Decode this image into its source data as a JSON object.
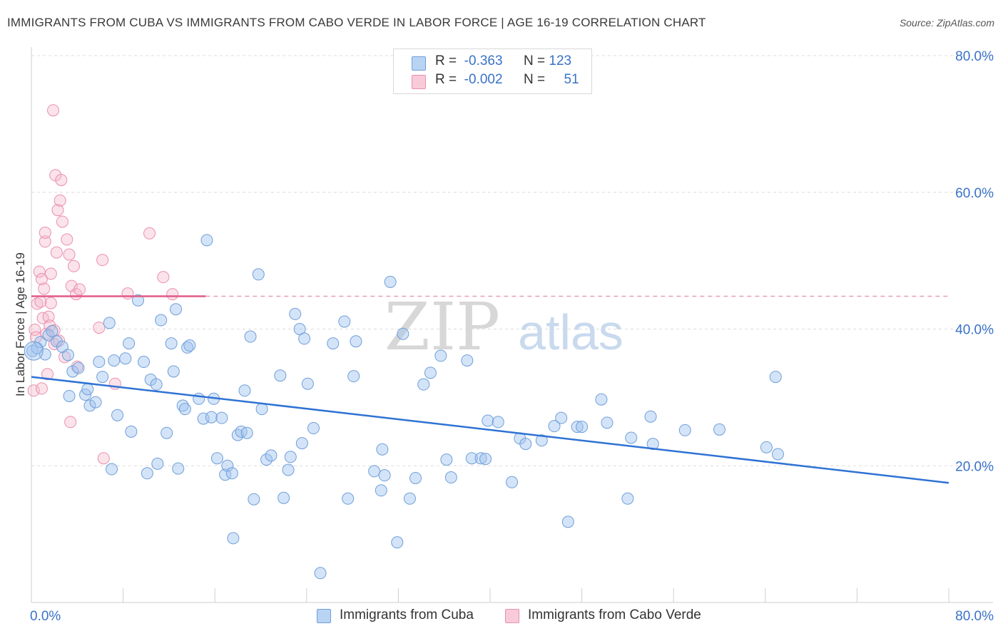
{
  "title": "IMMIGRANTS FROM CUBA VS IMMIGRANTS FROM CABO VERDE IN LABOR FORCE | AGE 16-19 CORRELATION CHART",
  "source": "Source: ZipAtlas.com",
  "watermark": {
    "zip": "ZIP",
    "atlas": "atlas"
  },
  "legend": {
    "rows": [
      {
        "r_label": "R =",
        "r_value": "-0.363",
        "n_label": "N =",
        "n_value": "123",
        "color": "#a9c8f0"
      },
      {
        "r_label": "R =",
        "r_value": "-0.002",
        "n_label": "N =",
        "n_value": "51",
        "color": "#f6b8cb"
      }
    ]
  },
  "chart_data": {
    "type": "scatter",
    "xlabel": "",
    "ylabel": "In Labor Force | Age 16-19",
    "xlim": [
      0,
      80
    ],
    "ylim": [
      0,
      80
    ],
    "x_tick_labels": [
      "0.0%",
      "80.0%"
    ],
    "y_tick_labels": [
      "20.0%",
      "40.0%",
      "60.0%",
      "80.0%"
    ],
    "y_ticks": [
      20,
      40,
      60,
      80
    ],
    "series": [
      {
        "name": "Immigrants from Cuba",
        "color": "#6f9fd8",
        "fill": "rgba(160,195,240,0.45)",
        "line_color": "#2f72d4",
        "trend": {
          "x": [
            0,
            80
          ],
          "y": [
            33.0,
            17.5
          ],
          "dashed_from": null
        },
        "points": [
          [
            0.1,
            36.8
          ],
          [
            0.5,
            37.2
          ],
          [
            0.8,
            38.1
          ],
          [
            1.2,
            36.3
          ],
          [
            1.5,
            39.1
          ],
          [
            1.8,
            39.7
          ],
          [
            2.2,
            38.2
          ],
          [
            2.7,
            37.4
          ],
          [
            3.2,
            36.2
          ],
          [
            3.6,
            33.8
          ],
          [
            4.1,
            34.3
          ],
          [
            3.3,
            30.2
          ],
          [
            4.7,
            30.4
          ],
          [
            4.9,
            31.2
          ],
          [
            5.9,
            35.2
          ],
          [
            5.1,
            28.8
          ],
          [
            5.6,
            29.3
          ],
          [
            6.2,
            33.0
          ],
          [
            6.8,
            40.9
          ],
          [
            7.2,
            35.4
          ],
          [
            7.5,
            27.4
          ],
          [
            7.0,
            19.5
          ],
          [
            8.2,
            35.7
          ],
          [
            8.5,
            37.9
          ],
          [
            8.7,
            25.0
          ],
          [
            9.3,
            44.2
          ],
          [
            9.8,
            35.2
          ],
          [
            10.1,
            18.9
          ],
          [
            10.4,
            32.6
          ],
          [
            10.9,
            31.9
          ],
          [
            11.0,
            20.3
          ],
          [
            11.3,
            41.3
          ],
          [
            11.8,
            24.8
          ],
          [
            12.2,
            37.9
          ],
          [
            12.4,
            33.8
          ],
          [
            12.6,
            42.9
          ],
          [
            12.8,
            19.6
          ],
          [
            13.2,
            28.8
          ],
          [
            13.4,
            28.3
          ],
          [
            13.6,
            37.3
          ],
          [
            13.8,
            37.6
          ],
          [
            14.6,
            29.8
          ],
          [
            15.0,
            26.9
          ],
          [
            15.3,
            53.0
          ],
          [
            15.7,
            27.1
          ],
          [
            15.9,
            29.8
          ],
          [
            16.2,
            21.1
          ],
          [
            16.6,
            27.0
          ],
          [
            16.9,
            18.7
          ],
          [
            17.1,
            20.0
          ],
          [
            17.5,
            18.9
          ],
          [
            17.6,
            9.4
          ],
          [
            18.0,
            24.5
          ],
          [
            18.3,
            25.0
          ],
          [
            18.6,
            31.0
          ],
          [
            18.8,
            24.8
          ],
          [
            19.1,
            38.9
          ],
          [
            19.4,
            15.1
          ],
          [
            19.8,
            48.0
          ],
          [
            20.1,
            28.3
          ],
          [
            20.5,
            20.9
          ],
          [
            20.9,
            21.5
          ],
          [
            21.7,
            33.2
          ],
          [
            22.0,
            15.3
          ],
          [
            22.4,
            19.4
          ],
          [
            22.6,
            21.3
          ],
          [
            23.0,
            42.2
          ],
          [
            23.4,
            40.0
          ],
          [
            23.6,
            23.3
          ],
          [
            23.8,
            38.6
          ],
          [
            24.1,
            32.0
          ],
          [
            24.6,
            25.5
          ],
          [
            25.2,
            4.3
          ],
          [
            26.3,
            37.9
          ],
          [
            27.3,
            41.1
          ],
          [
            27.6,
            15.2
          ],
          [
            28.1,
            33.1
          ],
          [
            28.3,
            38.2
          ],
          [
            29.9,
            19.2
          ],
          [
            30.6,
            22.4
          ],
          [
            30.8,
            18.6
          ],
          [
            30.5,
            16.4
          ],
          [
            31.3,
            46.9
          ],
          [
            31.9,
            8.8
          ],
          [
            32.4,
            39.3
          ],
          [
            33.0,
            15.2
          ],
          [
            33.5,
            18.2
          ],
          [
            34.2,
            31.9
          ],
          [
            34.8,
            33.6
          ],
          [
            35.7,
            36.1
          ],
          [
            36.2,
            20.9
          ],
          [
            36.6,
            18.3
          ],
          [
            38.0,
            35.4
          ],
          [
            38.4,
            21.1
          ],
          [
            39.2,
            21.1
          ],
          [
            39.6,
            21.0
          ],
          [
            39.8,
            26.6
          ],
          [
            40.7,
            26.4
          ],
          [
            41.9,
            17.6
          ],
          [
            42.6,
            24.0
          ],
          [
            43.1,
            23.2
          ],
          [
            44.5,
            23.7
          ],
          [
            45.6,
            25.8
          ],
          [
            46.2,
            27.0
          ],
          [
            46.8,
            11.8
          ],
          [
            47.6,
            25.7
          ],
          [
            48.0,
            25.7
          ],
          [
            49.7,
            29.7
          ],
          [
            50.2,
            26.3
          ],
          [
            52.0,
            15.2
          ],
          [
            52.3,
            24.1
          ],
          [
            54.0,
            27.2
          ],
          [
            54.2,
            23.2
          ],
          [
            57.0,
            25.2
          ],
          [
            60.0,
            25.3
          ],
          [
            64.1,
            22.7
          ],
          [
            64.9,
            33.0
          ],
          [
            65.1,
            21.7
          ]
        ],
        "big_point": [
          0.2,
          36.8
        ]
      },
      {
        "name": "Immigrants from Cabo Verde",
        "color": "#ea8fb0",
        "fill": "rgba(246,184,203,0.40)",
        "line_color": "#e05a87",
        "trend": {
          "x": [
            0,
            15.2,
            80
          ],
          "y": [
            44.8,
            44.8,
            44.8
          ],
          "dashed_from": 15.2
        },
        "points": [
          [
            0.2,
            31.0
          ],
          [
            0.3,
            39.9
          ],
          [
            0.4,
            38.8
          ],
          [
            0.5,
            43.7
          ],
          [
            0.7,
            48.4
          ],
          [
            0.9,
            47.3
          ],
          [
            0.8,
            44.0
          ],
          [
            0.9,
            31.3
          ],
          [
            1.0,
            41.6
          ],
          [
            1.1,
            45.9
          ],
          [
            1.2,
            52.8
          ],
          [
            1.2,
            54.1
          ],
          [
            1.3,
            39.3
          ],
          [
            1.4,
            33.4
          ],
          [
            1.5,
            41.8
          ],
          [
            1.6,
            40.5
          ],
          [
            1.7,
            43.8
          ],
          [
            1.7,
            48.1
          ],
          [
            1.9,
            72.0
          ],
          [
            2.0,
            39.8
          ],
          [
            2.0,
            37.8
          ],
          [
            2.1,
            62.5
          ],
          [
            2.2,
            51.2
          ],
          [
            2.3,
            57.4
          ],
          [
            2.4,
            38.3
          ],
          [
            2.5,
            58.8
          ],
          [
            2.6,
            61.8
          ],
          [
            2.7,
            55.7
          ],
          [
            2.9,
            35.9
          ],
          [
            3.1,
            53.1
          ],
          [
            3.3,
            50.9
          ],
          [
            3.4,
            26.4
          ],
          [
            3.5,
            46.3
          ],
          [
            3.7,
            49.2
          ],
          [
            3.9,
            45.1
          ],
          [
            4.0,
            34.5
          ],
          [
            4.2,
            45.8
          ],
          [
            5.9,
            40.2
          ],
          [
            6.2,
            50.1
          ],
          [
            6.3,
            21.1
          ],
          [
            7.3,
            32.0
          ],
          [
            8.4,
            45.2
          ],
          [
            10.3,
            54.0
          ],
          [
            11.5,
            47.6
          ],
          [
            12.3,
            45.1
          ]
        ]
      }
    ]
  }
}
